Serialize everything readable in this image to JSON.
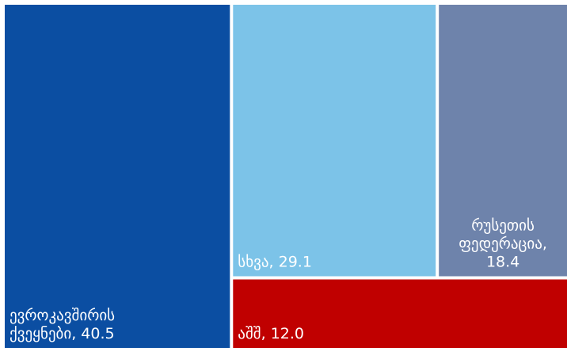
{
  "chart_data": {
    "type": "treemap",
    "title": "",
    "items": [
      {
        "label_lines": [
          "ევროკავშირის",
          "ქვეყნები, 40.5"
        ],
        "value": 40.5,
        "color": "#0b4ea2"
      },
      {
        "label_lines": [
          "სხვა, 29.1"
        ],
        "value": 29.1,
        "color": "#7cc3e8"
      },
      {
        "label_lines": [
          "რუსეთის",
          "ფედერაცია,",
          "18.4"
        ],
        "value": 18.4,
        "color": "#6e83ab"
      },
      {
        "label_lines": [
          "აშშ, 12.0"
        ],
        "value": 12.0,
        "color": "#c00000"
      }
    ]
  }
}
